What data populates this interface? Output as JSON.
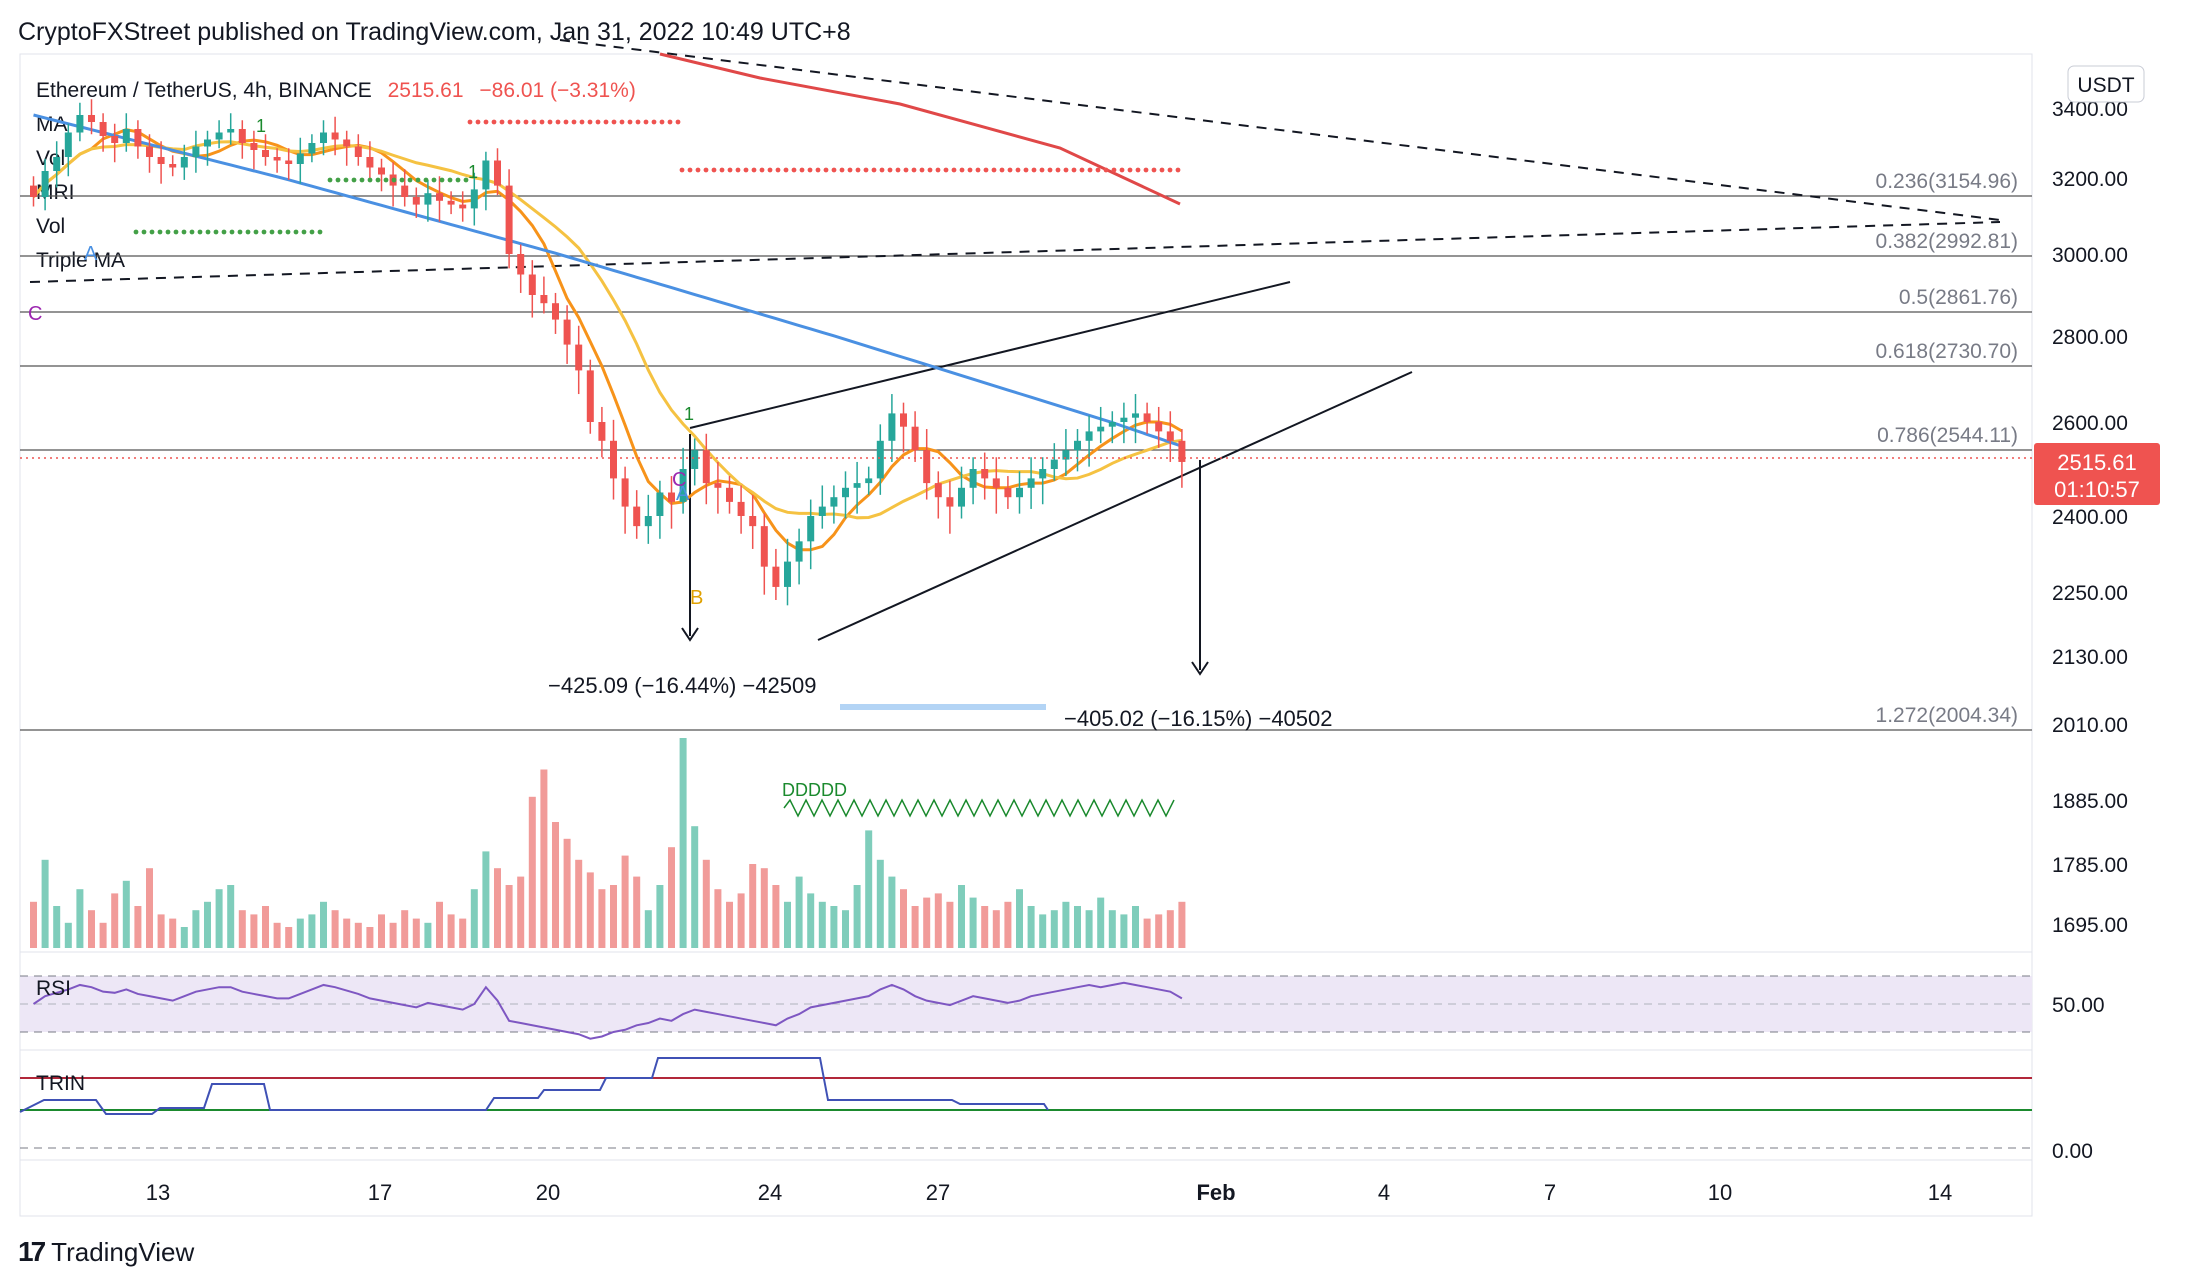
{
  "header": {
    "text": "CryptoFXStreet published on TradingView.com, Jan 31, 2022 10:49 UTC+8"
  },
  "legend": {
    "symbol": "Ethereum / TetherUS, 4h, BINANCE",
    "price": "2515.61",
    "change": "−86.01 (−3.31%)",
    "indicators": [
      "MA",
      "Vol",
      "MRI",
      "Vol",
      "Triple MA"
    ]
  },
  "brand": {
    "name": "TradingView"
  },
  "currency": "USDT",
  "last_price": {
    "value": "2515.61",
    "timer": "01:10:57",
    "color": "#ef5350"
  },
  "colors": {
    "up": "#26a69a",
    "down": "#ef5350",
    "ma_orange": "#f7931a",
    "ma_yellow": "#f5c242",
    "ma_blue": "#4a90e2",
    "ma_red": "#e04848",
    "rsi": "#7e57c2",
    "trin_red": "#b2283a",
    "trin_green": "#1b8a2e",
    "trin_blue": "#3f51b5"
  },
  "chart_data": {
    "type": "candlestick",
    "title": "Ethereum / TetherUS, 4h, BINANCE",
    "price_axis_ticks": [
      "3400.00",
      "3200.00",
      "3000.00",
      "2800.00",
      "2600.00",
      "2400.00",
      "2250.00",
      "2130.00",
      "2010.00",
      "1885.00",
      "1785.00",
      "1695.00"
    ],
    "date_axis_ticks": [
      "13",
      "17",
      "20",
      "24",
      "27",
      "Feb",
      "4",
      "7",
      "10",
      "14"
    ],
    "fibonacci": [
      {
        "label": "0.236(3154.96)",
        "value": 3154.96
      },
      {
        "label": "0.382(2992.81)",
        "value": 2992.81
      },
      {
        "label": "0.5(2861.76)",
        "value": 2861.76
      },
      {
        "label": "0.618(2730.70)",
        "value": 2730.7
      },
      {
        "label": "0.786(2544.11)",
        "value": 2544.11
      },
      {
        "label": "1.272(2004.34)",
        "value": 2004.34
      }
    ],
    "annotations": [
      "−425.09 (−16.44%) −42509",
      "−405.02 (−16.15%) −40502"
    ],
    "markers": [
      "C",
      "A",
      "C",
      "B",
      "1",
      "1",
      "1",
      "A"
    ],
    "pattern_label": "DDDDD",
    "rsi": {
      "label": "RSI",
      "tick": "50.00"
    },
    "trin": {
      "label": "TRIN",
      "tick": "0.00"
    },
    "close_prices": [
      3150,
      3220,
      3260,
      3330,
      3380,
      3360,
      3320,
      3300,
      3340,
      3290,
      3260,
      3240,
      3230,
      3260,
      3290,
      3310,
      3330,
      3340,
      3300,
      3280,
      3260,
      3250,
      3240,
      3270,
      3300,
      3330,
      3310,
      3290,
      3260,
      3230,
      3210,
      3180,
      3150,
      3130,
      3160,
      3140,
      3130,
      3120,
      3170,
      3250,
      3180,
      3000,
      2950,
      2900,
      2880,
      2840,
      2780,
      2720,
      2600,
      2560,
      2480,
      2420,
      2380,
      2400,
      2450,
      2430,
      2500,
      2540,
      2470,
      2460,
      2430,
      2400,
      2380,
      2300,
      2260,
      2310,
      2350,
      2400,
      2420,
      2440,
      2460,
      2470,
      2480,
      2560,
      2620,
      2590,
      2540,
      2470,
      2440,
      2420,
      2460,
      2500,
      2480,
      2460,
      2440,
      2460,
      2480,
      2500,
      2520,
      2540,
      2560,
      2580,
      2590,
      2600,
      2610,
      2620,
      2600,
      2580,
      2560,
      2515
    ],
    "volumes": [
      0.22,
      0.42,
      0.2,
      0.12,
      0.28,
      0.18,
      0.12,
      0.26,
      0.32,
      0.2,
      0.38,
      0.16,
      0.14,
      0.1,
      0.18,
      0.22,
      0.28,
      0.3,
      0.18,
      0.16,
      0.2,
      0.12,
      0.1,
      0.14,
      0.16,
      0.22,
      0.18,
      0.14,
      0.12,
      0.1,
      0.16,
      0.12,
      0.18,
      0.14,
      0.12,
      0.22,
      0.16,
      0.14,
      0.28,
      0.46,
      0.38,
      0.3,
      0.34,
      0.72,
      0.85,
      0.6,
      0.52,
      0.42,
      0.36,
      0.28,
      0.3,
      0.44,
      0.34,
      0.18,
      0.3,
      0.48,
      1.0,
      0.58,
      0.42,
      0.28,
      0.22,
      0.26,
      0.4,
      0.38,
      0.3,
      0.22,
      0.34,
      0.26,
      0.22,
      0.2,
      0.18,
      0.3,
      0.56,
      0.42,
      0.34,
      0.28,
      0.2,
      0.24,
      0.26,
      0.22,
      0.3,
      0.24,
      0.2,
      0.18,
      0.22,
      0.28,
      0.2,
      0.16,
      0.18,
      0.22,
      0.2,
      0.18,
      0.24,
      0.18,
      0.16,
      0.2,
      0.14,
      0.16,
      0.18,
      0.22
    ],
    "rsi_values": [
      45,
      52,
      55,
      58,
      62,
      60,
      56,
      55,
      58,
      54,
      52,
      50,
      48,
      52,
      56,
      58,
      60,
      60,
      56,
      54,
      52,
      50,
      50,
      54,
      58,
      62,
      60,
      57,
      54,
      50,
      48,
      46,
      44,
      42,
      46,
      44,
      42,
      40,
      45,
      60,
      48,
      30,
      28,
      26,
      24,
      22,
      20,
      18,
      14,
      16,
      20,
      22,
      26,
      28,
      32,
      30,
      36,
      40,
      38,
      36,
      34,
      32,
      30,
      28,
      26,
      32,
      36,
      42,
      44,
      46,
      48,
      50,
      52,
      58,
      62,
      58,
      52,
      48,
      46,
      44,
      48,
      52,
      50,
      48,
      46,
      48,
      52,
      54,
      56,
      58,
      60,
      62,
      60,
      62,
      64,
      62,
      60,
      58,
      56,
      50
    ]
  }
}
